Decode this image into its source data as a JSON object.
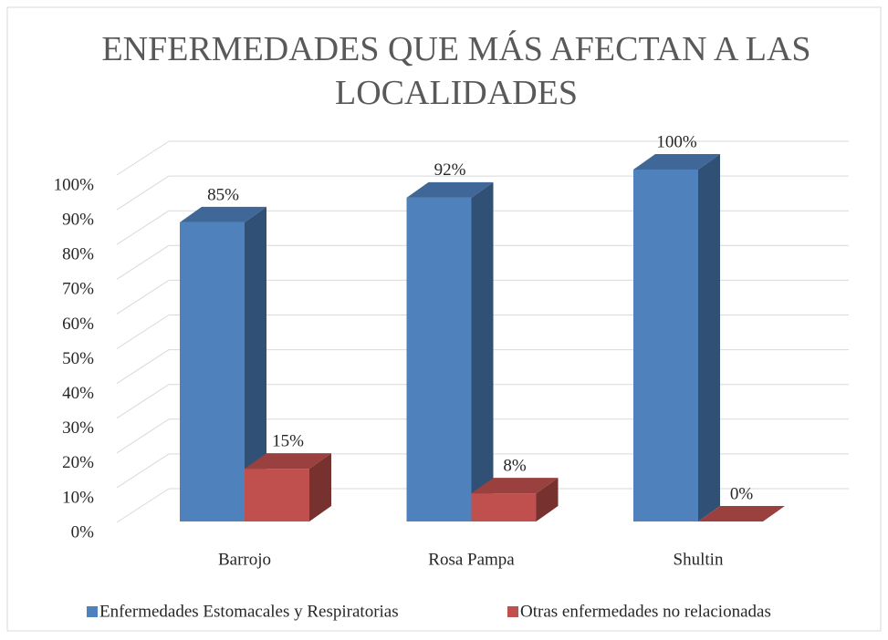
{
  "chart_data": {
    "type": "bar3d",
    "title": "ENFERMEDADES QUE MÁS AFECTAN A LAS LOCALIDADES",
    "categories": [
      "Barrojo",
      "Rosa Pampa",
      "Shultin"
    ],
    "series": [
      {
        "name": "Enfermedades Estomacales y Respiratorias",
        "color": "#4f81bd",
        "values": [
          85,
          92,
          100
        ],
        "value_labels": [
          "85%",
          "92%",
          "100%"
        ]
      },
      {
        "name": "Otras enfermedades no relacionadas",
        "color": "#c0504d",
        "values": [
          15,
          8,
          0
        ],
        "value_labels": [
          "15%",
          "8%",
          "0%"
        ]
      }
    ],
    "ylim": [
      0,
      100
    ],
    "yticks": [
      {
        "value": 0,
        "label": "0%"
      },
      {
        "value": 10,
        "label": "10%"
      },
      {
        "value": 20,
        "label": "20%"
      },
      {
        "value": 30,
        "label": "30%"
      },
      {
        "value": 40,
        "label": "40%"
      },
      {
        "value": 50,
        "label": "50%"
      },
      {
        "value": 60,
        "label": "60%"
      },
      {
        "value": 70,
        "label": "70%"
      },
      {
        "value": 80,
        "label": "80%"
      },
      {
        "value": 90,
        "label": "90%"
      },
      {
        "value": 100,
        "label": "100%"
      }
    ],
    "grid": true,
    "legend": "bottom"
  }
}
